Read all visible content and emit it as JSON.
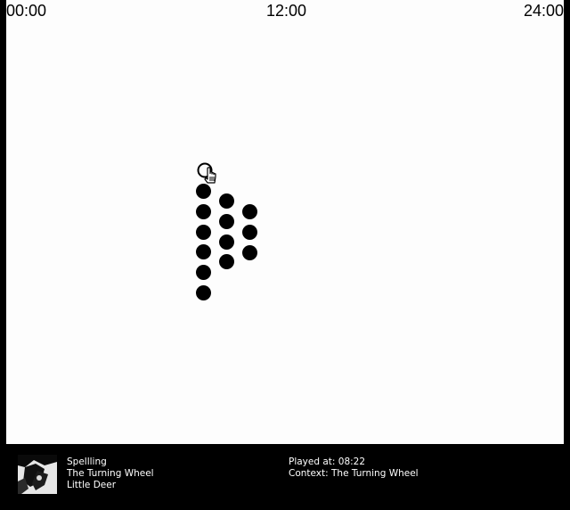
{
  "timeline": {
    "start_label": "00:00",
    "mid_label": "12:00",
    "end_label": "24:00"
  },
  "dot_columns": [
    {
      "count": 6
    },
    {
      "count": 4
    },
    {
      "count": 3
    }
  ],
  "now_playing": {
    "artist": "Spellling",
    "album": "The Turning Wheel",
    "track": "Little Deer",
    "played_at": "Played at: 08:22",
    "context": "Context: The Turning Wheel"
  },
  "colors": {
    "background": "#fdfdfd",
    "dot": "#000000",
    "player_bg": "#000000",
    "player_text": "#ffffff"
  },
  "icons": {
    "cursor": "hand-pointer-icon",
    "cover": "album-cover"
  }
}
